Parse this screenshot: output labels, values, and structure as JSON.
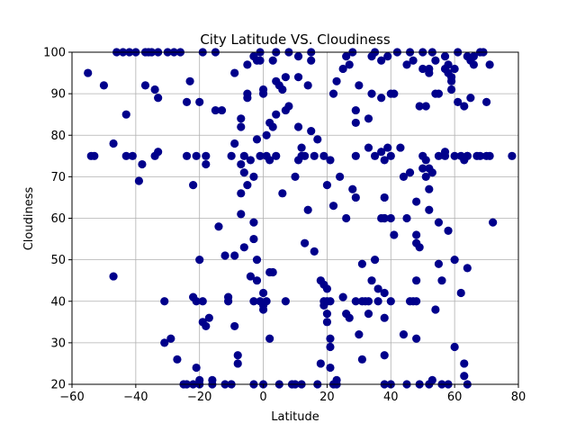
{
  "chart_data": {
    "type": "scatter",
    "title": "City Latitude VS. Cloudiness",
    "xlabel": "Latitude",
    "ylabel": "Cloudiness",
    "xlim": [
      -60,
      80
    ],
    "ylim": [
      20,
      100
    ],
    "xticks": [
      -60,
      -40,
      -20,
      0,
      20,
      40,
      60,
      80
    ],
    "yticks": [
      20,
      30,
      40,
      50,
      60,
      70,
      80,
      90,
      100
    ],
    "grid": true,
    "marker_color": "#00008b",
    "points": [
      [
        -55,
        95
      ],
      [
        -54,
        75
      ],
      [
        -53,
        75
      ],
      [
        -50,
        92
      ],
      [
        -47,
        78
      ],
      [
        -47,
        46
      ],
      [
        -46,
        100
      ],
      [
        -44,
        100
      ],
      [
        -43,
        85
      ],
      [
        -43,
        75
      ],
      [
        -42,
        100
      ],
      [
        -41,
        75
      ],
      [
        -40,
        100
      ],
      [
        -39,
        69
      ],
      [
        -38,
        73
      ],
      [
        -37,
        92
      ],
      [
        -37,
        100
      ],
      [
        -36,
        100
      ],
      [
        -35,
        100
      ],
      [
        -34,
        91
      ],
      [
        -34,
        75
      ],
      [
        -33,
        89
      ],
      [
        -33,
        76
      ],
      [
        -33,
        100
      ],
      [
        -31,
        30
      ],
      [
        -31,
        40
      ],
      [
        -30,
        100
      ],
      [
        -29,
        31
      ],
      [
        -28,
        100
      ],
      [
        -27,
        26
      ],
      [
        -26,
        100
      ],
      [
        -25,
        20
      ],
      [
        -24,
        20
      ],
      [
        -24,
        75
      ],
      [
        -24,
        88
      ],
      [
        -23,
        93
      ],
      [
        -22,
        20
      ],
      [
        -22,
        41
      ],
      [
        -22,
        68
      ],
      [
        -21,
        24
      ],
      [
        -21,
        75
      ],
      [
        -21,
        40
      ],
      [
        -20,
        88
      ],
      [
        -20,
        21
      ],
      [
        -20,
        50
      ],
      [
        -20,
        20
      ],
      [
        -19,
        35
      ],
      [
        -19,
        40
      ],
      [
        -19,
        100
      ],
      [
        -18,
        34
      ],
      [
        -18,
        75
      ],
      [
        -18,
        73
      ],
      [
        -17,
        36
      ],
      [
        -16,
        20
      ],
      [
        -16,
        21
      ],
      [
        -15,
        86
      ],
      [
        -15,
        100
      ],
      [
        -14,
        58
      ],
      [
        -13,
        86
      ],
      [
        -12,
        51
      ],
      [
        -12,
        20
      ],
      [
        -11,
        40
      ],
      [
        -11,
        41
      ],
      [
        -10,
        20
      ],
      [
        -10,
        75
      ],
      [
        -9,
        95
      ],
      [
        -9,
        78
      ],
      [
        -9,
        51
      ],
      [
        -9,
        34
      ],
      [
        -8,
        25
      ],
      [
        -8,
        27
      ],
      [
        -7,
        61
      ],
      [
        -7,
        82
      ],
      [
        -7,
        84
      ],
      [
        -7,
        66
      ],
      [
        -7,
        73
      ],
      [
        -6,
        53
      ],
      [
        -6,
        71
      ],
      [
        -6,
        75
      ],
      [
        -5,
        97
      ],
      [
        -5,
        89
      ],
      [
        -5,
        68
      ],
      [
        -5,
        90
      ],
      [
        -4,
        74
      ],
      [
        -4,
        46
      ],
      [
        -3,
        20
      ],
      [
        -3,
        40
      ],
      [
        -3,
        55
      ],
      [
        -3,
        59
      ],
      [
        -3,
        70
      ],
      [
        -3,
        99
      ],
      [
        -2,
        79
      ],
      [
        -2,
        45
      ],
      [
        -2,
        50
      ],
      [
        -2,
        98
      ],
      [
        -1,
        100
      ],
      [
        -1,
        75
      ],
      [
        -1,
        40
      ],
      [
        -1,
        98
      ],
      [
        0,
        39
      ],
      [
        0,
        42
      ],
      [
        0,
        38
      ],
      [
        0,
        90
      ],
      [
        0,
        91
      ],
      [
        0,
        20
      ],
      [
        1,
        75
      ],
      [
        1,
        40
      ],
      [
        1,
        80
      ],
      [
        2,
        47
      ],
      [
        2,
        83
      ],
      [
        2,
        74
      ],
      [
        2,
        31
      ],
      [
        3,
        82
      ],
      [
        3,
        98
      ],
      [
        3,
        47
      ],
      [
        4,
        100
      ],
      [
        4,
        93
      ],
      [
        4,
        85
      ],
      [
        4,
        75
      ],
      [
        5,
        20
      ],
      [
        5,
        92
      ],
      [
        6,
        66
      ],
      [
        6,
        91
      ],
      [
        7,
        40
      ],
      [
        7,
        94
      ],
      [
        7,
        86
      ],
      [
        8,
        87
      ],
      [
        8,
        100
      ],
      [
        9,
        20
      ],
      [
        10,
        70
      ],
      [
        10,
        20
      ],
      [
        11,
        94
      ],
      [
        11,
        99
      ],
      [
        11,
        82
      ],
      [
        11,
        74
      ],
      [
        12,
        77
      ],
      [
        12,
        75
      ],
      [
        12,
        20
      ],
      [
        13,
        54
      ],
      [
        13,
        75
      ],
      [
        14,
        62
      ],
      [
        14,
        92
      ],
      [
        15,
        100
      ],
      [
        15,
        81
      ],
      [
        15,
        98
      ],
      [
        16,
        52
      ],
      [
        16,
        75
      ],
      [
        17,
        79
      ],
      [
        17,
        20
      ],
      [
        18,
        25
      ],
      [
        18,
        45
      ],
      [
        19,
        44
      ],
      [
        19,
        39
      ],
      [
        19,
        40
      ],
      [
        19,
        75
      ],
      [
        20,
        37
      ],
      [
        20,
        35
      ],
      [
        20,
        40
      ],
      [
        20,
        68
      ],
      [
        20,
        43
      ],
      [
        21,
        31
      ],
      [
        21,
        24
      ],
      [
        21,
        29
      ],
      [
        21,
        74
      ],
      [
        21,
        40
      ],
      [
        22,
        20
      ],
      [
        22,
        90
      ],
      [
        22,
        63
      ],
      [
        23,
        93
      ],
      [
        23,
        20
      ],
      [
        23,
        21
      ],
      [
        24,
        70
      ],
      [
        25,
        96
      ],
      [
        25,
        41
      ],
      [
        26,
        37
      ],
      [
        26,
        60
      ],
      [
        26,
        99
      ],
      [
        27,
        36
      ],
      [
        27,
        97
      ],
      [
        28,
        67
      ],
      [
        28,
        100
      ],
      [
        29,
        86
      ],
      [
        29,
        83
      ],
      [
        29,
        65
      ],
      [
        29,
        40
      ],
      [
        29,
        75
      ],
      [
        30,
        92
      ],
      [
        30,
        32
      ],
      [
        31,
        40
      ],
      [
        31,
        49
      ],
      [
        31,
        26
      ],
      [
        32,
        40
      ],
      [
        33,
        77
      ],
      [
        33,
        37
      ],
      [
        33,
        40
      ],
      [
        33,
        84
      ],
      [
        34,
        90
      ],
      [
        34,
        99
      ],
      [
        34,
        45
      ],
      [
        35,
        50
      ],
      [
        35,
        75
      ],
      [
        35,
        100
      ],
      [
        36,
        40
      ],
      [
        36,
        43
      ],
      [
        37,
        76
      ],
      [
        37,
        89
      ],
      [
        37,
        98
      ],
      [
        37,
        60
      ],
      [
        38,
        27
      ],
      [
        38,
        36
      ],
      [
        38,
        42
      ],
      [
        38,
        65
      ],
      [
        38,
        20
      ],
      [
        38,
        74
      ],
      [
        38,
        60
      ],
      [
        38,
        60
      ],
      [
        39,
        99
      ],
      [
        39,
        77
      ],
      [
        40,
        90
      ],
      [
        40,
        20
      ],
      [
        40,
        40
      ],
      [
        40,
        75
      ],
      [
        40,
        60
      ],
      [
        41,
        56
      ],
      [
        41,
        90
      ],
      [
        42,
        100
      ],
      [
        43,
        77
      ],
      [
        44,
        70
      ],
      [
        44,
        32
      ],
      [
        45,
        20
      ],
      [
        45,
        97
      ],
      [
        45,
        60
      ],
      [
        46,
        100
      ],
      [
        46,
        71
      ],
      [
        46,
        40
      ],
      [
        47,
        40
      ],
      [
        47,
        98
      ],
      [
        48,
        56
      ],
      [
        48,
        54
      ],
      [
        48,
        45
      ],
      [
        48,
        31
      ],
      [
        48,
        64
      ],
      [
        48,
        40
      ],
      [
        49,
        53
      ],
      [
        49,
        87
      ],
      [
        49,
        20
      ],
      [
        50,
        100
      ],
      [
        50,
        75
      ],
      [
        50,
        72
      ],
      [
        50,
        96
      ],
      [
        51,
        87
      ],
      [
        51,
        74
      ],
      [
        51,
        70
      ],
      [
        52,
        20
      ],
      [
        52,
        67
      ],
      [
        52,
        62
      ],
      [
        52,
        96
      ],
      [
        52,
        95
      ],
      [
        52,
        72
      ],
      [
        53,
        21
      ],
      [
        53,
        71
      ],
      [
        53,
        100
      ],
      [
        54,
        38
      ],
      [
        54,
        90
      ],
      [
        54,
        98
      ],
      [
        55,
        49
      ],
      [
        55,
        59
      ],
      [
        55,
        75
      ],
      [
        55,
        90
      ],
      [
        56,
        45
      ],
      [
        56,
        20
      ],
      [
        57,
        75
      ],
      [
        57,
        76
      ],
      [
        57,
        96
      ],
      [
        57,
        99
      ],
      [
        58,
        95
      ],
      [
        58,
        57
      ],
      [
        58,
        97
      ],
      [
        58,
        20
      ],
      [
        59,
        91
      ],
      [
        59,
        94
      ],
      [
        59,
        93
      ],
      [
        60,
        75
      ],
      [
        60,
        96
      ],
      [
        60,
        50
      ],
      [
        60,
        29
      ],
      [
        61,
        88
      ],
      [
        61,
        100
      ],
      [
        62,
        75
      ],
      [
        62,
        42
      ],
      [
        63,
        25
      ],
      [
        63,
        74
      ],
      [
        63,
        87
      ],
      [
        63,
        22
      ],
      [
        64,
        48
      ],
      [
        64,
        75
      ],
      [
        64,
        75
      ],
      [
        64,
        20
      ],
      [
        64,
        99
      ],
      [
        65,
        98
      ],
      [
        65,
        89
      ],
      [
        66,
        99
      ],
      [
        66,
        97
      ],
      [
        67,
        75
      ],
      [
        68,
        100
      ],
      [
        68,
        75
      ],
      [
        69,
        100
      ],
      [
        70,
        75
      ],
      [
        70,
        88
      ],
      [
        71,
        75
      ],
      [
        71,
        97
      ],
      [
        72,
        59
      ],
      [
        78,
        75
      ]
    ]
  }
}
